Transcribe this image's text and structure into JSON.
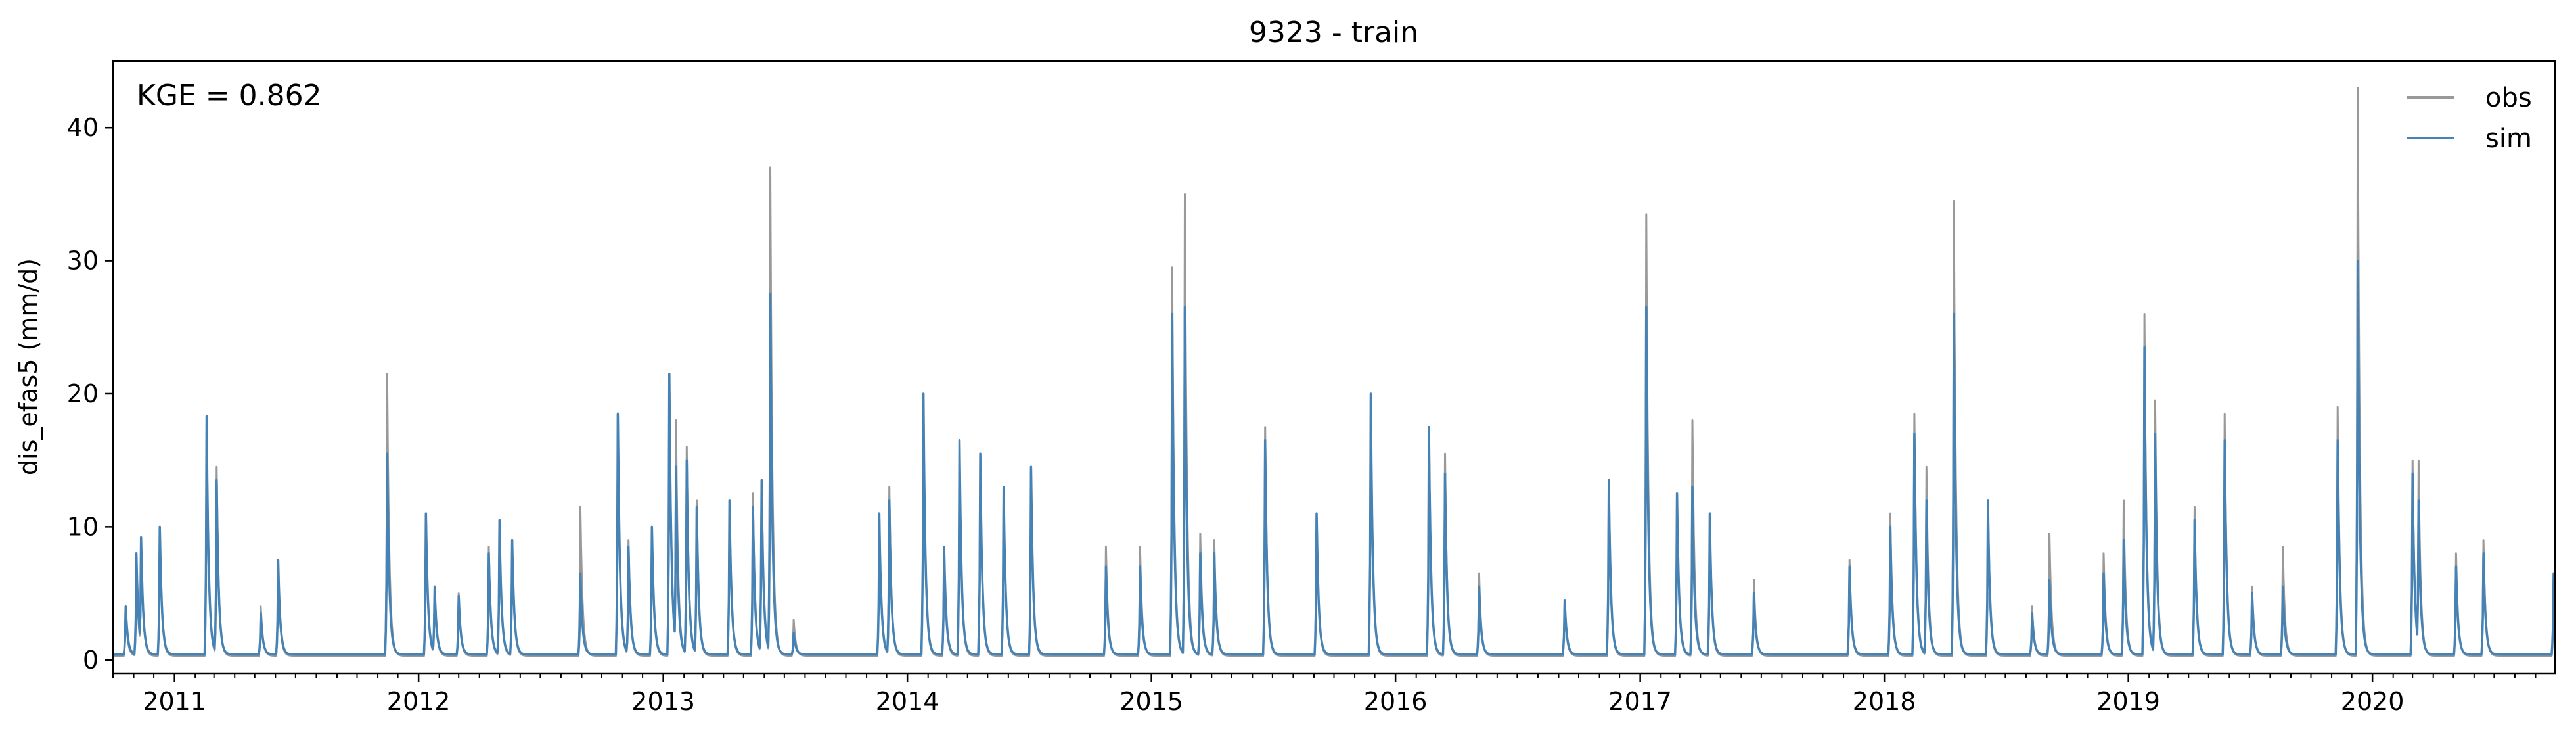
{
  "chart_data": {
    "type": "line",
    "title": "9323 - train",
    "ylabel": "dis_efas5 (mm/d)",
    "xlabel": "",
    "annotation": "KGE = 0.862",
    "xlim": [
      "2010-10-01",
      "2020-09-30"
    ],
    "ylim": [
      -1.0,
      45.0
    ],
    "y_ticks": [
      0,
      10,
      20,
      30,
      40
    ],
    "x_ticks": [
      {
        "label": "2011",
        "date": "2011-01-01"
      },
      {
        "label": "2012",
        "date": "2012-01-01"
      },
      {
        "label": "2013",
        "date": "2013-01-01"
      },
      {
        "label": "2014",
        "date": "2014-01-01"
      },
      {
        "label": "2015",
        "date": "2015-01-01"
      },
      {
        "label": "2016",
        "date": "2016-01-01"
      },
      {
        "label": "2017",
        "date": "2017-01-01"
      },
      {
        "label": "2018",
        "date": "2018-01-01"
      },
      {
        "label": "2019",
        "date": "2019-01-01"
      },
      {
        "label": "2020",
        "date": "2020-01-01"
      }
    ],
    "grid": false,
    "legend_position": "top-right",
    "series": [
      {
        "name": "obs",
        "color": "#999999",
        "baseline": 0.3,
        "peaks": [
          [
            "2010-10-20",
            3.5
          ],
          [
            "2010-11-05",
            7.5
          ],
          [
            "2010-11-12",
            9.0
          ],
          [
            "2010-12-10",
            10.0
          ],
          [
            "2011-02-18",
            18.0
          ],
          [
            "2011-03-05",
            14.5
          ],
          [
            "2011-05-10",
            4.0
          ],
          [
            "2011-06-05",
            7.0
          ],
          [
            "2011-11-15",
            21.5
          ],
          [
            "2012-01-12",
            11.0
          ],
          [
            "2012-01-25",
            5.5
          ],
          [
            "2012-03-01",
            5.0
          ],
          [
            "2012-04-15",
            8.5
          ],
          [
            "2012-05-01",
            10.5
          ],
          [
            "2012-05-20",
            9.0
          ],
          [
            "2012-08-30",
            11.5
          ],
          [
            "2012-10-25",
            18.5
          ],
          [
            "2012-11-10",
            9.0
          ],
          [
            "2012-12-15",
            10.0
          ],
          [
            "2013-01-10",
            21.5
          ],
          [
            "2013-01-20",
            18.0
          ],
          [
            "2013-02-05",
            16.0
          ],
          [
            "2013-02-20",
            12.0
          ],
          [
            "2013-04-10",
            12.0
          ],
          [
            "2013-05-15",
            12.5
          ],
          [
            "2013-05-28",
            13.5
          ],
          [
            "2013-06-10",
            37.0
          ],
          [
            "2013-07-15",
            3.0
          ],
          [
            "2013-11-20",
            11.0
          ],
          [
            "2013-12-05",
            13.0
          ],
          [
            "2014-01-25",
            20.0
          ],
          [
            "2014-02-25",
            8.5
          ],
          [
            "2014-03-20",
            16.5
          ],
          [
            "2014-04-20",
            15.5
          ],
          [
            "2014-05-25",
            13.0
          ],
          [
            "2014-07-05",
            14.5
          ],
          [
            "2014-10-25",
            8.5
          ],
          [
            "2014-12-15",
            8.5
          ],
          [
            "2015-02-01",
            29.5
          ],
          [
            "2015-02-20",
            35.0
          ],
          [
            "2015-03-15",
            9.5
          ],
          [
            "2015-04-05",
            9.0
          ],
          [
            "2015-06-20",
            17.5
          ],
          [
            "2015-09-05",
            11.0
          ],
          [
            "2015-11-25",
            20.0
          ],
          [
            "2016-02-20",
            17.5
          ],
          [
            "2016-03-15",
            15.5
          ],
          [
            "2016-05-05",
            6.5
          ],
          [
            "2016-09-10",
            4.5
          ],
          [
            "2016-11-15",
            13.5
          ],
          [
            "2017-01-10",
            33.5
          ],
          [
            "2017-02-25",
            12.5
          ],
          [
            "2017-03-20",
            18.0
          ],
          [
            "2017-04-15",
            11.0
          ],
          [
            "2017-06-20",
            6.0
          ],
          [
            "2017-11-10",
            7.5
          ],
          [
            "2018-01-10",
            11.0
          ],
          [
            "2018-02-15",
            18.5
          ],
          [
            "2018-03-05",
            14.5
          ],
          [
            "2018-04-15",
            34.5
          ],
          [
            "2018-06-05",
            12.0
          ],
          [
            "2018-08-10",
            4.0
          ],
          [
            "2018-09-05",
            9.5
          ],
          [
            "2018-11-25",
            8.0
          ],
          [
            "2018-12-25",
            12.0
          ],
          [
            "2019-01-25",
            26.0
          ],
          [
            "2019-02-10",
            19.5
          ],
          [
            "2019-04-10",
            11.5
          ],
          [
            "2019-05-25",
            18.5
          ],
          [
            "2019-07-05",
            5.5
          ],
          [
            "2019-08-20",
            8.5
          ],
          [
            "2019-11-10",
            19.0
          ],
          [
            "2019-12-10",
            43.0
          ],
          [
            "2020-03-01",
            15.0
          ],
          [
            "2020-03-10",
            15.0
          ],
          [
            "2020-05-05",
            8.0
          ],
          [
            "2020-06-15",
            9.0
          ],
          [
            "2020-09-28",
            6.5
          ]
        ]
      },
      {
        "name": "sim",
        "color": "#4682b4",
        "baseline": 0.4,
        "peaks": [
          [
            "2010-10-20",
            4.0
          ],
          [
            "2010-11-05",
            8.0
          ],
          [
            "2010-11-12",
            9.2
          ],
          [
            "2010-12-10",
            10.0
          ],
          [
            "2011-02-18",
            18.3
          ],
          [
            "2011-03-05",
            13.5
          ],
          [
            "2011-05-10",
            3.5
          ],
          [
            "2011-06-05",
            7.5
          ],
          [
            "2011-11-15",
            15.5
          ],
          [
            "2012-01-12",
            11.0
          ],
          [
            "2012-01-25",
            5.5
          ],
          [
            "2012-03-01",
            4.8
          ],
          [
            "2012-04-15",
            8.0
          ],
          [
            "2012-05-01",
            10.5
          ],
          [
            "2012-05-20",
            9.0
          ],
          [
            "2012-08-30",
            6.5
          ],
          [
            "2012-10-25",
            18.5
          ],
          [
            "2012-11-10",
            8.5
          ],
          [
            "2012-12-15",
            10.0
          ],
          [
            "2013-01-10",
            21.5
          ],
          [
            "2013-01-20",
            14.5
          ],
          [
            "2013-02-05",
            15.0
          ],
          [
            "2013-02-20",
            11.5
          ],
          [
            "2013-04-10",
            12.0
          ],
          [
            "2013-05-15",
            11.5
          ],
          [
            "2013-05-28",
            13.5
          ],
          [
            "2013-06-10",
            27.5
          ],
          [
            "2013-07-15",
            2.0
          ],
          [
            "2013-11-20",
            11.0
          ],
          [
            "2013-12-05",
            12.0
          ],
          [
            "2014-01-25",
            20.0
          ],
          [
            "2014-02-25",
            8.5
          ],
          [
            "2014-03-20",
            16.5
          ],
          [
            "2014-04-20",
            15.5
          ],
          [
            "2014-05-25",
            13.0
          ],
          [
            "2014-07-05",
            14.5
          ],
          [
            "2014-10-25",
            7.0
          ],
          [
            "2014-12-15",
            7.0
          ],
          [
            "2015-02-01",
            26.0
          ],
          [
            "2015-02-20",
            26.5
          ],
          [
            "2015-03-15",
            8.0
          ],
          [
            "2015-04-05",
            8.0
          ],
          [
            "2015-06-20",
            16.5
          ],
          [
            "2015-09-05",
            11.0
          ],
          [
            "2015-11-25",
            20.0
          ],
          [
            "2016-02-20",
            17.5
          ],
          [
            "2016-03-15",
            14.0
          ],
          [
            "2016-05-05",
            5.5
          ],
          [
            "2016-09-10",
            4.5
          ],
          [
            "2016-11-15",
            13.5
          ],
          [
            "2017-01-10",
            26.5
          ],
          [
            "2017-02-25",
            12.5
          ],
          [
            "2017-03-20",
            13.0
          ],
          [
            "2017-04-15",
            11.0
          ],
          [
            "2017-06-20",
            5.0
          ],
          [
            "2017-11-10",
            7.0
          ],
          [
            "2018-01-10",
            10.0
          ],
          [
            "2018-02-15",
            17.0
          ],
          [
            "2018-03-05",
            12.0
          ],
          [
            "2018-04-15",
            26.0
          ],
          [
            "2018-06-05",
            12.0
          ],
          [
            "2018-08-10",
            3.5
          ],
          [
            "2018-09-05",
            6.0
          ],
          [
            "2018-11-25",
            6.5
          ],
          [
            "2018-12-25",
            9.0
          ],
          [
            "2019-01-25",
            23.5
          ],
          [
            "2019-02-10",
            17.0
          ],
          [
            "2019-04-10",
            10.5
          ],
          [
            "2019-05-25",
            16.5
          ],
          [
            "2019-07-05",
            5.0
          ],
          [
            "2019-08-20",
            5.5
          ],
          [
            "2019-11-10",
            16.5
          ],
          [
            "2019-12-10",
            30.0
          ],
          [
            "2020-03-01",
            14.0
          ],
          [
            "2020-03-10",
            12.0
          ],
          [
            "2020-05-05",
            7.0
          ],
          [
            "2020-06-15",
            8.0
          ],
          [
            "2020-09-28",
            6.5
          ]
        ]
      }
    ]
  }
}
